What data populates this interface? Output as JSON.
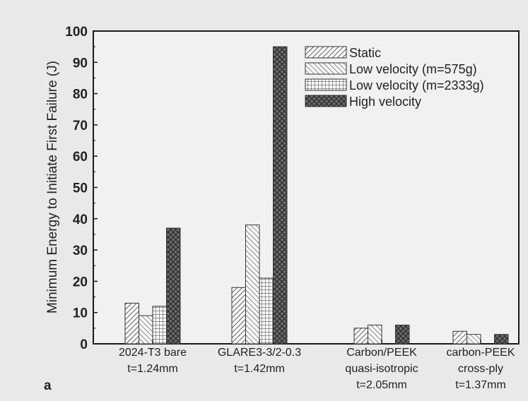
{
  "panel_label": "a",
  "chart_data": {
    "type": "bar",
    "ylabel": "Minimum Energy to Initiate First Failure (J)",
    "xlabel": "",
    "ylim": [
      0,
      100
    ],
    "yticks": [
      0,
      10,
      20,
      30,
      40,
      50,
      60,
      70,
      80,
      90,
      100
    ],
    "grid": false,
    "legend_position": "top-right",
    "categories": [
      [
        "2024-T3 bare",
        "t=1.24mm"
      ],
      [
        "GLARE3-3/2-0.3",
        "t=1.42mm"
      ],
      [
        "Carbon/PEEK",
        "quasi-isotropic",
        "t=2.05mm"
      ],
      [
        "carbon-PEEK",
        "cross-ply",
        "t=1.37mm"
      ]
    ],
    "series": [
      {
        "name": "Static",
        "pattern": "diag-right",
        "values": [
          13,
          18,
          5,
          4
        ]
      },
      {
        "name": "Low velocity (m=575g)",
        "pattern": "diag-left",
        "values": [
          9,
          38,
          6,
          3
        ]
      },
      {
        "name": "Low velocity (m=2333g)",
        "pattern": "grid",
        "values": [
          12,
          21,
          null,
          null
        ]
      },
      {
        "name": "High velocity",
        "pattern": "crosshatch-dark",
        "values": [
          37,
          95,
          6,
          3
        ]
      }
    ]
  }
}
